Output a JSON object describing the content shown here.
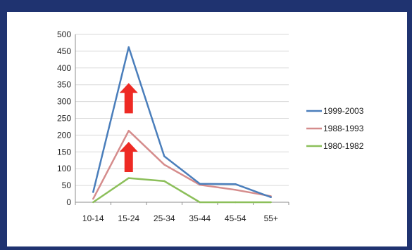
{
  "chart_data": {
    "type": "line",
    "categories": [
      "10-14",
      "15-24",
      "25-34",
      "35-44",
      "45-54",
      "55+"
    ],
    "ylim": [
      0,
      500
    ],
    "yticks": [
      0,
      50,
      100,
      150,
      200,
      250,
      300,
      350,
      400,
      450,
      500
    ],
    "grid": true,
    "legend_position": "right",
    "series": [
      {
        "name": "1999-2003",
        "values": [
          30,
          462,
          137,
          55,
          54,
          15
        ],
        "color": "#4a7ebb"
      },
      {
        "name": "1988-1993",
        "values": [
          10,
          213,
          112,
          52,
          37,
          18
        ],
        "color": "#d58c8c"
      },
      {
        "name": "1980-1982",
        "values": [
          0,
          72,
          63,
          0,
          0,
          0
        ],
        "color": "#8cbf5a"
      }
    ],
    "annotations": [
      {
        "type": "up-arrow",
        "x": "15-24",
        "y_from": 265,
        "y_to": 355,
        "color": "#ee2a24"
      },
      {
        "type": "up-arrow",
        "x": "15-24",
        "y_from": 90,
        "y_to": 180,
        "color": "#ee2a24"
      }
    ]
  }
}
